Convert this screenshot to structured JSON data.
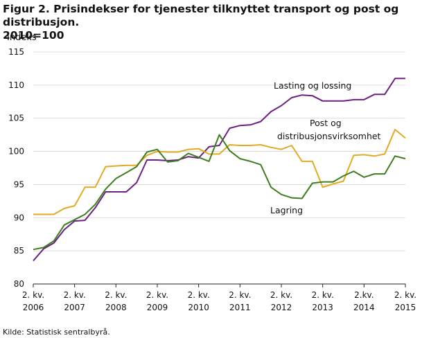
{
  "figure": {
    "title_line1": "Figur 2. Prisindekser for tjenester tilknyttet transport og post og distribusjon.",
    "title_line2": "2010=100",
    "source": "Kilde: Statistisk sentralbyrå."
  },
  "chart_data": {
    "type": "line",
    "title": "Figur 2. Prisindekser for tjenester tilknyttet transport og post og distribusjon. 2010=100",
    "ylabel": "Indeks",
    "ylim": [
      80,
      115
    ],
    "yticks": [
      80,
      85,
      90,
      95,
      100,
      105,
      110,
      115
    ],
    "grid": true,
    "x_tick_labels": [
      {
        "q": "2. kv.",
        "year": "2006",
        "index": 0
      },
      {
        "q": "2. kv.",
        "year": "2007",
        "index": 4
      },
      {
        "q": "2. kv.",
        "year": "2008",
        "index": 8
      },
      {
        "q": "2. kv.",
        "year": "2009",
        "index": 12
      },
      {
        "q": "2. kv.",
        "year": "2010",
        "index": 16
      },
      {
        "q": "2. kv.",
        "year": "2011",
        "index": 20
      },
      {
        "q": "2. kv.",
        "year": "2012",
        "index": 24
      },
      {
        "q": "2. kv.",
        "year": "2013",
        "index": 28
      },
      {
        "q": "2.kv.",
        "year": "2014",
        "index": 32
      },
      {
        "q": "2. kv.",
        "year": "2015",
        "index": 36
      }
    ],
    "series": [
      {
        "name": "Lasting og lossing",
        "color": "#6b1f80",
        "values": [
          83.5,
          85.3,
          86.2,
          88.2,
          89.5,
          89.6,
          91.5,
          93.9,
          93.9,
          93.9,
          95.3,
          98.7,
          98.7,
          98.6,
          98.7,
          99.2,
          99.0,
          100.7,
          100.9,
          103.5,
          103.9,
          104.0,
          104.5,
          106.0,
          106.9,
          108.1,
          108.5,
          108.4,
          107.6,
          107.6,
          107.6,
          107.8,
          107.8,
          108.6,
          108.6,
          111.0,
          111.0
        ]
      },
      {
        "name": "Post og distribusjonsvirksomhet",
        "color": "#e3a922",
        "values": [
          90.5,
          90.5,
          90.5,
          91.4,
          91.8,
          94.6,
          94.6,
          97.7,
          97.8,
          97.9,
          97.9,
          99.4,
          100.0,
          99.9,
          99.9,
          100.3,
          100.4,
          99.6,
          99.6,
          101.0,
          100.9,
          100.9,
          101.0,
          100.6,
          100.3,
          100.9,
          98.5,
          98.5,
          94.6,
          95.1,
          95.5,
          99.4,
          99.5,
          99.3,
          99.6,
          103.3,
          102.0
        ]
      },
      {
        "name": "Lagring",
        "color": "#3d7d1f",
        "values": [
          85.2,
          85.5,
          86.5,
          88.9,
          89.7,
          90.5,
          92.0,
          94.3,
          95.9,
          96.8,
          97.7,
          99.9,
          100.3,
          98.4,
          98.6,
          99.7,
          99.1,
          98.5,
          102.5,
          100.1,
          98.9,
          98.5,
          98.0,
          94.6,
          93.5,
          93.0,
          92.9,
          95.2,
          95.4,
          95.4,
          96.3,
          97.0,
          96.1,
          96.6,
          96.6,
          99.3,
          98.9
        ]
      }
    ],
    "annotations": {
      "lasting": "Lasting og lossing",
      "post_line1": "Post og",
      "post_line2": "distribusjonsvirksomhet",
      "lagring": "Lagring"
    }
  }
}
